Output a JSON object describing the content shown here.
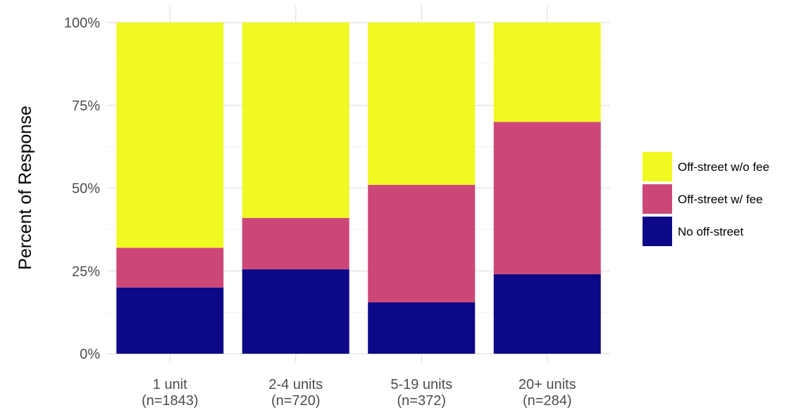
{
  "chart_data": {
    "type": "bar",
    "stacked": true,
    "percent": true,
    "title": "",
    "xlabel": "",
    "ylabel": "Percent of Response",
    "ylim": [
      0,
      1
    ],
    "y_ticks": [
      {
        "value": 0,
        "label": "0%"
      },
      {
        "value": 0.25,
        "label": "25%"
      },
      {
        "value": 0.5,
        "label": "50%"
      },
      {
        "value": 0.75,
        "label": "75%"
      },
      {
        "value": 1,
        "label": "100%"
      }
    ],
    "categories": [
      {
        "line1": "1 unit",
        "line2": "(n=1843)"
      },
      {
        "line1": "2-4 units",
        "line2": "(n=720)"
      },
      {
        "line1": "5-19 units",
        "line2": "(n=372)"
      },
      {
        "line1": "20+ units",
        "line2": "(n=284)"
      }
    ],
    "series": [
      {
        "name": "No off-street",
        "color": "#0d0887",
        "values": [
          0.2,
          0.255,
          0.155,
          0.24
        ]
      },
      {
        "name": "Off-street w/ fee",
        "color": "#cc4778",
        "values": [
          0.12,
          0.155,
          0.355,
          0.46
        ]
      },
      {
        "name": "Off-street w/o fee",
        "color": "#f0f921",
        "values": [
          0.68,
          0.59,
          0.49,
          0.3
        ]
      }
    ],
    "legend_order": [
      "Off-street w/o fee",
      "Off-street w/ fee",
      "No off-street"
    ],
    "legend_position": "right",
    "grid": true
  }
}
